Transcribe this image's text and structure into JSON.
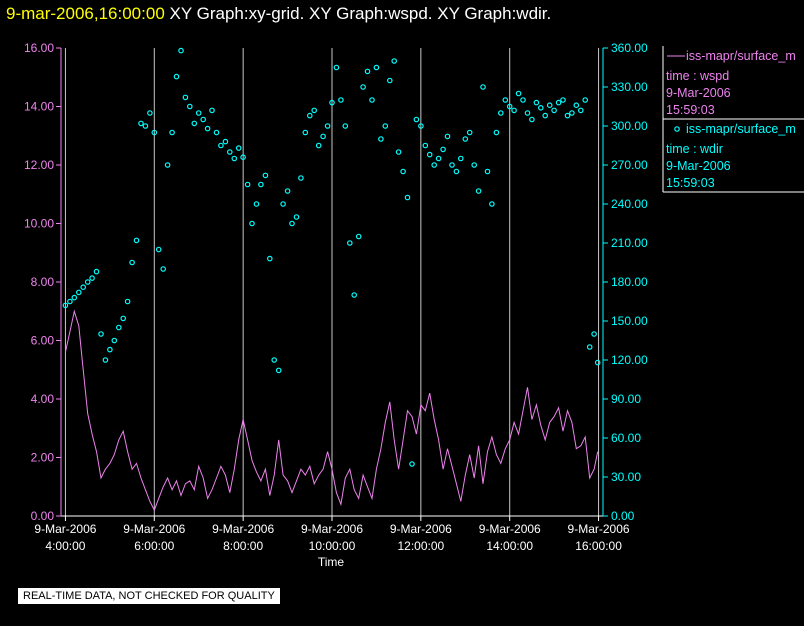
{
  "header": {
    "date": "9-mar-2006,16:00:00",
    "graphs": "XY Graph:xy-grid.  XY Graph:wspd.  XY Graph:wdir."
  },
  "colors": {
    "wspd": "#ee82ee",
    "wdir": "#00ffff",
    "axis": "#ffffff",
    "grid": "#c8c8c8",
    "background": "#000000"
  },
  "legend": {
    "entries": [
      {
        "series": "wspd",
        "line1": "iss-mapr/surface_m",
        "line2": "time : wspd",
        "line3": "9-Mar-2006",
        "line4": "15:59:03"
      },
      {
        "series": "wdir",
        "line1": "iss-mapr/surface_m",
        "line2": "time : wdir",
        "line3": "9-Mar-2006",
        "line4": "15:59:03"
      }
    ]
  },
  "notice": "REAL-TIME DATA, NOT CHECKED FOR QUALITY",
  "chart_data": {
    "type": "line+scatter",
    "title": "",
    "xlabel": "Time",
    "xlim": [
      3.9,
      16.1
    ],
    "x_ticks": [
      {
        "value": 4,
        "date": "9-Mar-2006",
        "time": "4:00:00"
      },
      {
        "value": 6,
        "date": "9-Mar-2006",
        "time": "6:00:00"
      },
      {
        "value": 8,
        "date": "9-Mar-2006",
        "time": "8:00:00"
      },
      {
        "value": 10,
        "date": "9-Mar-2006",
        "time": "10:00:00"
      },
      {
        "value": 12,
        "date": "9-Mar-2006",
        "time": "12:00:00"
      },
      {
        "value": 14,
        "date": "9-Mar-2006",
        "time": "14:00:00"
      },
      {
        "value": 16,
        "date": "9-Mar-2006",
        "time": "16:00:00"
      }
    ],
    "left_axis": {
      "series": "wspd",
      "ylim": [
        0,
        16
      ],
      "ticks": [
        "0.00",
        "2.00",
        "4.00",
        "6.00",
        "8.00",
        "10.00",
        "12.00",
        "14.00",
        "16.00"
      ]
    },
    "right_axis": {
      "series": "wdir",
      "ylim": [
        0,
        360
      ],
      "ticks": [
        "0.00",
        "30.00",
        "60.00",
        "90.00",
        "120.00",
        "150.00",
        "180.00",
        "210.00",
        "240.00",
        "270.00",
        "300.00",
        "330.00",
        "360.00"
      ]
    },
    "grid": "vertical",
    "series": [
      {
        "name": "wspd",
        "style": "line",
        "axis": "left",
        "points": [
          [
            4.0,
            5.6
          ],
          [
            4.1,
            6.3
          ],
          [
            4.2,
            7.0
          ],
          [
            4.3,
            6.5
          ],
          [
            4.4,
            5.0
          ],
          [
            4.5,
            3.5
          ],
          [
            4.6,
            2.8
          ],
          [
            4.7,
            2.2
          ],
          [
            4.8,
            1.3
          ],
          [
            4.9,
            1.6
          ],
          [
            5.0,
            1.8
          ],
          [
            5.1,
            2.1
          ],
          [
            5.2,
            2.6
          ],
          [
            5.3,
            2.9
          ],
          [
            5.4,
            2.2
          ],
          [
            5.5,
            1.6
          ],
          [
            5.6,
            1.8
          ],
          [
            5.7,
            1.3
          ],
          [
            5.8,
            0.9
          ],
          [
            5.9,
            0.5
          ],
          [
            6.0,
            0.2
          ],
          [
            6.1,
            0.6
          ],
          [
            6.2,
            1.0
          ],
          [
            6.3,
            1.3
          ],
          [
            6.4,
            0.9
          ],
          [
            6.5,
            1.2
          ],
          [
            6.6,
            0.7
          ],
          [
            6.7,
            1.1
          ],
          [
            6.8,
            1.2
          ],
          [
            6.9,
            0.9
          ],
          [
            7.0,
            1.7
          ],
          [
            7.1,
            1.3
          ],
          [
            7.2,
            0.6
          ],
          [
            7.3,
            0.9
          ],
          [
            7.4,
            1.3
          ],
          [
            7.5,
            1.7
          ],
          [
            7.6,
            1.4
          ],
          [
            7.7,
            0.8
          ],
          [
            7.8,
            1.6
          ],
          [
            7.9,
            2.6
          ],
          [
            8.0,
            3.3
          ],
          [
            8.1,
            2.6
          ],
          [
            8.2,
            1.9
          ],
          [
            8.3,
            1.5
          ],
          [
            8.4,
            1.2
          ],
          [
            8.5,
            1.6
          ],
          [
            8.6,
            0.7
          ],
          [
            8.7,
            1.4
          ],
          [
            8.8,
            2.6
          ],
          [
            8.9,
            1.4
          ],
          [
            9.0,
            1.2
          ],
          [
            9.1,
            0.8
          ],
          [
            9.2,
            1.2
          ],
          [
            9.3,
            1.6
          ],
          [
            9.4,
            1.4
          ],
          [
            9.5,
            1.7
          ],
          [
            9.6,
            1.1
          ],
          [
            9.7,
            1.4
          ],
          [
            9.8,
            1.6
          ],
          [
            9.9,
            2.2
          ],
          [
            10.0,
            1.6
          ],
          [
            10.1,
            0.8
          ],
          [
            10.2,
            0.4
          ],
          [
            10.3,
            1.3
          ],
          [
            10.4,
            1.6
          ],
          [
            10.5,
            0.9
          ],
          [
            10.6,
            0.6
          ],
          [
            10.7,
            1.4
          ],
          [
            10.8,
            1.0
          ],
          [
            10.9,
            0.6
          ],
          [
            11.0,
            1.6
          ],
          [
            11.1,
            2.3
          ],
          [
            11.2,
            3.2
          ],
          [
            11.3,
            3.9
          ],
          [
            11.4,
            2.6
          ],
          [
            11.5,
            1.6
          ],
          [
            11.6,
            2.6
          ],
          [
            11.7,
            3.6
          ],
          [
            11.8,
            3.4
          ],
          [
            11.9,
            2.8
          ],
          [
            12.0,
            3.8
          ],
          [
            12.1,
            3.6
          ],
          [
            12.2,
            4.2
          ],
          [
            12.3,
            3.3
          ],
          [
            12.4,
            2.6
          ],
          [
            12.5,
            1.6
          ],
          [
            12.6,
            2.3
          ],
          [
            12.7,
            1.7
          ],
          [
            12.8,
            1.1
          ],
          [
            12.9,
            0.5
          ],
          [
            13.0,
            1.4
          ],
          [
            13.1,
            2.1
          ],
          [
            13.2,
            1.3
          ],
          [
            13.3,
            2.4
          ],
          [
            13.4,
            1.1
          ],
          [
            13.5,
            2.2
          ],
          [
            13.6,
            2.7
          ],
          [
            13.7,
            2.1
          ],
          [
            13.8,
            1.8
          ],
          [
            13.9,
            2.3
          ],
          [
            14.0,
            2.6
          ],
          [
            14.1,
            3.2
          ],
          [
            14.2,
            2.8
          ],
          [
            14.3,
            3.6
          ],
          [
            14.4,
            4.4
          ],
          [
            14.5,
            3.3
          ],
          [
            14.6,
            3.8
          ],
          [
            14.7,
            3.1
          ],
          [
            14.8,
            2.6
          ],
          [
            14.9,
            3.2
          ],
          [
            15.0,
            3.4
          ],
          [
            15.1,
            3.7
          ],
          [
            15.2,
            2.9
          ],
          [
            15.3,
            3.6
          ],
          [
            15.4,
            3.2
          ],
          [
            15.5,
            2.3
          ],
          [
            15.6,
            2.4
          ],
          [
            15.7,
            2.7
          ],
          [
            15.8,
            1.3
          ],
          [
            15.9,
            1.6
          ],
          [
            15.98,
            2.2
          ]
        ]
      },
      {
        "name": "wdir",
        "style": "scatter",
        "axis": "right",
        "points": [
          [
            4.0,
            162
          ],
          [
            4.1,
            165
          ],
          [
            4.2,
            168
          ],
          [
            4.3,
            172
          ],
          [
            4.4,
            176
          ],
          [
            4.5,
            180
          ],
          [
            4.6,
            183
          ],
          [
            4.7,
            188
          ],
          [
            4.8,
            140
          ],
          [
            4.9,
            120
          ],
          [
            5.0,
            128
          ],
          [
            5.1,
            135
          ],
          [
            5.2,
            145
          ],
          [
            5.3,
            152
          ],
          [
            5.4,
            165
          ],
          [
            5.5,
            195
          ],
          [
            5.6,
            212
          ],
          [
            5.7,
            302
          ],
          [
            5.8,
            300
          ],
          [
            5.9,
            310
          ],
          [
            6.0,
            295
          ],
          [
            6.1,
            205
          ],
          [
            6.2,
            190
          ],
          [
            6.3,
            270
          ],
          [
            6.4,
            295
          ],
          [
            6.5,
            338
          ],
          [
            6.6,
            358
          ],
          [
            6.7,
            322
          ],
          [
            6.8,
            315
          ],
          [
            6.9,
            302
          ],
          [
            7.0,
            310
          ],
          [
            7.1,
            305
          ],
          [
            7.2,
            298
          ],
          [
            7.3,
            312
          ],
          [
            7.4,
            295
          ],
          [
            7.5,
            285
          ],
          [
            7.6,
            288
          ],
          [
            7.7,
            280
          ],
          [
            7.8,
            275
          ],
          [
            7.9,
            283
          ],
          [
            8.0,
            276
          ],
          [
            8.1,
            255
          ],
          [
            8.2,
            225
          ],
          [
            8.3,
            240
          ],
          [
            8.4,
            255
          ],
          [
            8.5,
            262
          ],
          [
            8.6,
            198
          ],
          [
            8.7,
            120
          ],
          [
            8.8,
            112
          ],
          [
            8.9,
            240
          ],
          [
            9.0,
            250
          ],
          [
            9.1,
            225
          ],
          [
            9.2,
            230
          ],
          [
            9.3,
            260
          ],
          [
            9.4,
            295
          ],
          [
            9.5,
            308
          ],
          [
            9.6,
            312
          ],
          [
            9.7,
            285
          ],
          [
            9.8,
            292
          ],
          [
            9.9,
            300
          ],
          [
            10.0,
            318
          ],
          [
            10.1,
            345
          ],
          [
            10.2,
            320
          ],
          [
            10.3,
            300
          ],
          [
            10.4,
            210
          ],
          [
            10.5,
            170
          ],
          [
            10.6,
            215
          ],
          [
            10.7,
            330
          ],
          [
            10.8,
            342
          ],
          [
            10.9,
            320
          ],
          [
            11.0,
            345
          ],
          [
            11.1,
            290
          ],
          [
            11.2,
            300
          ],
          [
            11.3,
            335
          ],
          [
            11.4,
            350
          ],
          [
            11.5,
            280
          ],
          [
            11.6,
            265
          ],
          [
            11.7,
            245
          ],
          [
            11.8,
            40
          ],
          [
            11.9,
            305
          ],
          [
            12.0,
            300
          ],
          [
            12.1,
            285
          ],
          [
            12.2,
            278
          ],
          [
            12.3,
            270
          ],
          [
            12.4,
            275
          ],
          [
            12.5,
            282
          ],
          [
            12.6,
            292
          ],
          [
            12.7,
            270
          ],
          [
            12.8,
            265
          ],
          [
            12.9,
            275
          ],
          [
            13.0,
            290
          ],
          [
            13.1,
            295
          ],
          [
            13.2,
            270
          ],
          [
            13.3,
            250
          ],
          [
            13.4,
            330
          ],
          [
            13.5,
            265
          ],
          [
            13.6,
            240
          ],
          [
            13.7,
            295
          ],
          [
            13.8,
            310
          ],
          [
            13.9,
            320
          ],
          [
            14.0,
            315
          ],
          [
            14.1,
            312
          ],
          [
            14.2,
            325
          ],
          [
            14.3,
            320
          ],
          [
            14.4,
            310
          ],
          [
            14.5,
            305
          ],
          [
            14.6,
            318
          ],
          [
            14.7,
            314
          ],
          [
            14.8,
            308
          ],
          [
            14.9,
            316
          ],
          [
            15.0,
            312
          ],
          [
            15.1,
            318
          ],
          [
            15.2,
            320
          ],
          [
            15.3,
            308
          ],
          [
            15.4,
            310
          ],
          [
            15.5,
            316
          ],
          [
            15.6,
            312
          ],
          [
            15.7,
            320
          ],
          [
            15.8,
            130
          ],
          [
            15.9,
            140
          ],
          [
            15.98,
            118
          ]
        ]
      }
    ]
  }
}
